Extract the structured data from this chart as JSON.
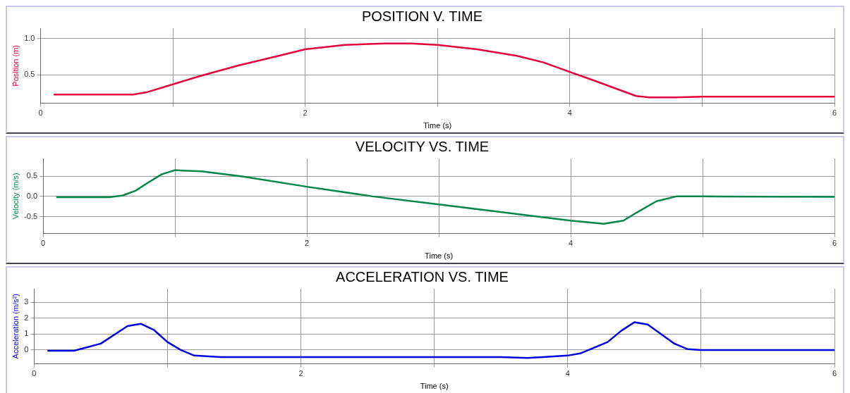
{
  "chart_data": [
    {
      "type": "line",
      "title": "POSITION V. TIME",
      "xlabel": "Time (s)",
      "ylabel": "Position (m)",
      "xlim": [
        0,
        6
      ],
      "xticks": [
        0,
        {
          "value": 1,
          "label": null
        },
        2,
        {
          "value": 3,
          "label": null
        },
        4,
        {
          "value": 5,
          "label": null
        },
        6
      ],
      "ylim": [
        0.11,
        1.14
      ],
      "yticks": [
        0.5,
        {
          "value": 1,
          "label": "1.0"
        }
      ],
      "grid": true,
      "series": [
        {
          "color": "#e4003c",
          "x": [
            0.1,
            0.7,
            0.8,
            1.0,
            1.2,
            1.5,
            1.8,
            2.0,
            2.3,
            2.6,
            2.8,
            3.0,
            3.3,
            3.6,
            3.8,
            4.0,
            4.2,
            4.5,
            4.6,
            4.8,
            5.0,
            6.0
          ],
          "values": [
            0.23,
            0.23,
            0.26,
            0.37,
            0.48,
            0.63,
            0.76,
            0.85,
            0.91,
            0.93,
            0.93,
            0.91,
            0.85,
            0.76,
            0.67,
            0.54,
            0.41,
            0.21,
            0.19,
            0.19,
            0.2,
            0.2
          ]
        }
      ]
    },
    {
      "type": "line",
      "title": "VELOCITY VS. TIME",
      "xlabel": "Time (s)",
      "ylabel": "Velocity (m/s)",
      "xlim": [
        0,
        6
      ],
      "xticks": [
        0,
        {
          "value": 1,
          "label": null
        },
        2,
        {
          "value": 3,
          "label": null
        },
        4,
        {
          "value": 5,
          "label": null
        },
        6
      ],
      "ylim": [
        -0.92,
        0.94
      ],
      "yticks": [
        {
          "value": -0.5,
          "label": "-0.5"
        },
        {
          "value": 0,
          "label": "0.0"
        },
        0.5
      ],
      "grid": true,
      "series": [
        {
          "color": "#00864a",
          "x": [
            0.1,
            0.5,
            0.6,
            0.7,
            0.8,
            0.9,
            1.0,
            1.2,
            1.5,
            2.0,
            2.5,
            3.0,
            3.5,
            4.0,
            4.25,
            4.4,
            4.5,
            4.65,
            4.8,
            5.0,
            6.0
          ],
          "values": [
            -0.02,
            -0.02,
            0.02,
            0.14,
            0.35,
            0.55,
            0.65,
            0.62,
            0.5,
            0.24,
            0.0,
            -0.2,
            -0.4,
            -0.6,
            -0.68,
            -0.6,
            -0.4,
            -0.12,
            0.0,
            0.0,
            -0.01
          ]
        }
      ]
    },
    {
      "type": "line",
      "title": "ACCELERATION VS. TIME",
      "xlabel": "Time (s)",
      "ylabel": "Acceleration (m/s²)",
      "xlim": [
        0,
        6
      ],
      "xticks": [
        0,
        {
          "value": 1,
          "label": null
        },
        2,
        {
          "value": 3,
          "label": null
        },
        4,
        {
          "value": 5,
          "label": null
        },
        6
      ],
      "ylim": [
        -0.87,
        3.85
      ],
      "yticks": [
        0,
        1,
        2,
        3
      ],
      "grid": true,
      "series": [
        {
          "color": "#0000e0",
          "x": [
            0.1,
            0.3,
            0.5,
            0.7,
            0.8,
            0.9,
            1.0,
            1.1,
            1.2,
            1.4,
            2.0,
            2.5,
            3.0,
            3.5,
            3.7,
            4.0,
            4.1,
            4.3,
            4.4,
            4.5,
            4.6,
            4.8,
            4.9,
            5.0,
            6.0
          ],
          "values": [
            -0.05,
            -0.05,
            0.4,
            1.5,
            1.65,
            1.25,
            0.5,
            0.0,
            -0.35,
            -0.45,
            -0.45,
            -0.45,
            -0.45,
            -0.45,
            -0.5,
            -0.35,
            -0.2,
            0.5,
            1.2,
            1.75,
            1.6,
            0.4,
            0.05,
            0.0,
            0.0
          ]
        }
      ]
    }
  ]
}
